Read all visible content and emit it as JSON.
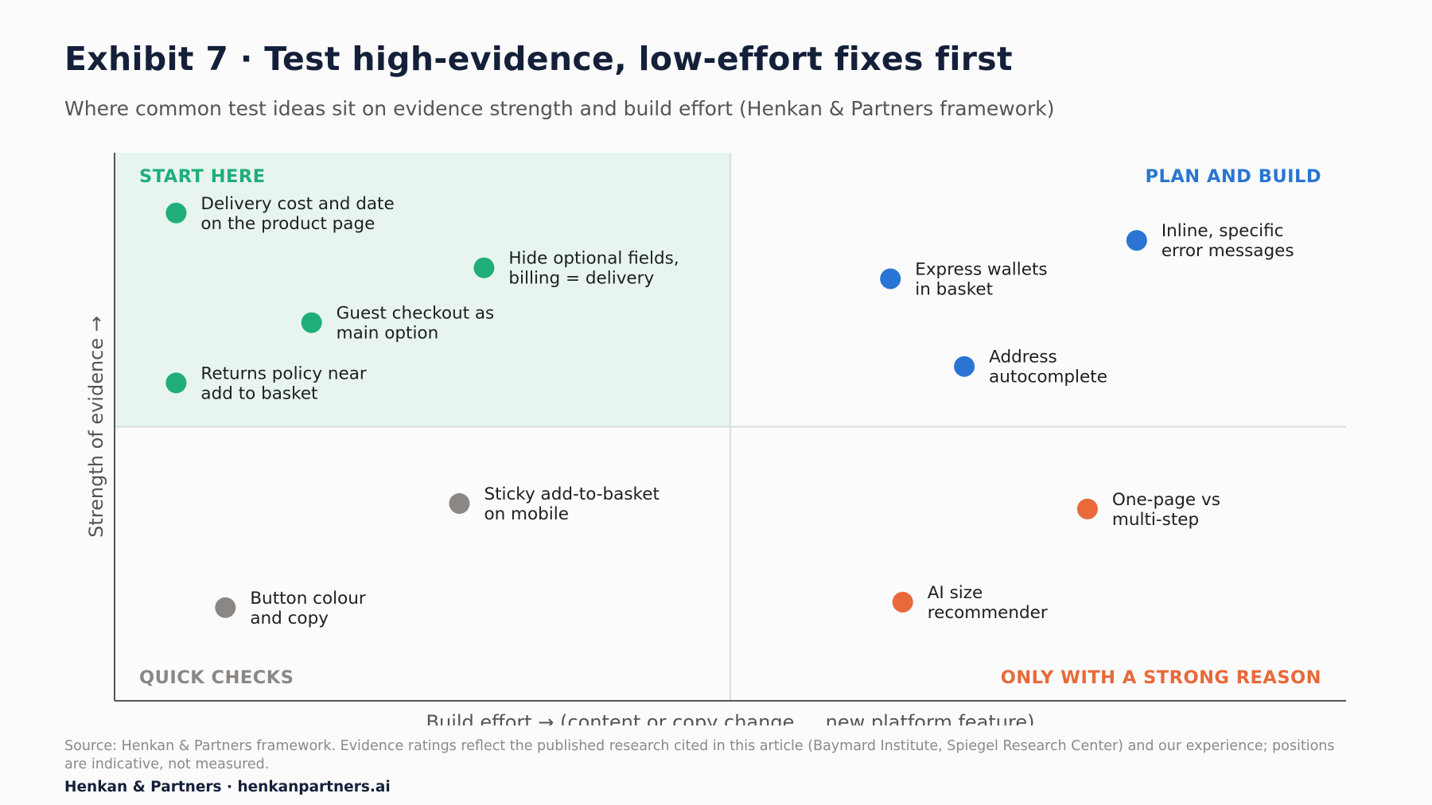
{
  "header": {
    "title": "Exhibit 7 · Test high-evidence, low-effort fixes first",
    "subtitle": "Where common test ideas sit on evidence strength and build effort (Henkan & Partners framework)"
  },
  "footer": {
    "source": "Source: Henkan & Partners framework. Evidence ratings reflect the published research cited in this article (Baymard Institute, Spiegel Research Center) and our experience; positions are indicative, not measured.",
    "brand": "Henkan & Partners · henkanpartners.ai"
  },
  "colors": {
    "green": "#1fae7a",
    "blue": "#2a75d3",
    "gray": "#8a8784",
    "orange": "#e8693a",
    "quadrant_highlight": "#e7f5ee",
    "axis": "#555555",
    "divider": "#dddddd"
  },
  "chart_data": {
    "type": "scatter",
    "xlabel": "Build effort  →  (content or copy change … new platform feature)",
    "ylabel": "Strength of evidence  →",
    "xlim": [
      0,
      10
    ],
    "ylim": [
      0,
      10
    ],
    "x_divider": 5,
    "y_divider": 5,
    "grid": false,
    "quadrants": [
      {
        "name": "START HERE",
        "color": "#1fae7a",
        "highlight": true
      },
      {
        "name": "PLAN AND BUILD",
        "color": "#2a75d3",
        "highlight": false
      },
      {
        "name": "QUICK CHECKS",
        "color": "#8a8784",
        "highlight": false
      },
      {
        "name": "ONLY WITH A STRONG REASON",
        "color": "#e8693a",
        "highlight": false
      }
    ],
    "points": [
      {
        "lines": [
          "Delivery cost and date",
          "on the product page"
        ],
        "x": 0.5,
        "y": 8.9,
        "color": "#1fae7a"
      },
      {
        "lines": [
          "Hide optional fields,",
          "billing = delivery"
        ],
        "x": 3.0,
        "y": 7.9,
        "color": "#1fae7a"
      },
      {
        "lines": [
          "Guest checkout as",
          "main option"
        ],
        "x": 1.6,
        "y": 6.9,
        "color": "#1fae7a"
      },
      {
        "lines": [
          "Returns policy near",
          "add to basket"
        ],
        "x": 0.5,
        "y": 5.8,
        "color": "#1fae7a"
      },
      {
        "lines": [
          "Express wallets",
          "in basket"
        ],
        "x": 6.3,
        "y": 7.7,
        "color": "#2a75d3"
      },
      {
        "lines": [
          "Inline, specific",
          "error messages"
        ],
        "x": 8.3,
        "y": 8.4,
        "color": "#2a75d3"
      },
      {
        "lines": [
          "Address",
          "autocomplete"
        ],
        "x": 6.9,
        "y": 6.1,
        "color": "#2a75d3"
      },
      {
        "lines": [
          "Sticky add-to-basket",
          "on mobile"
        ],
        "x": 2.8,
        "y": 3.6,
        "color": "#8a8784"
      },
      {
        "lines": [
          "Button colour",
          "and copy"
        ],
        "x": 0.9,
        "y": 1.7,
        "color": "#8a8784"
      },
      {
        "lines": [
          "One-page vs",
          "multi-step"
        ],
        "x": 7.9,
        "y": 3.5,
        "color": "#e8693a"
      },
      {
        "lines": [
          "AI size",
          "recommender"
        ],
        "x": 6.4,
        "y": 1.8,
        "color": "#e8693a"
      }
    ]
  }
}
